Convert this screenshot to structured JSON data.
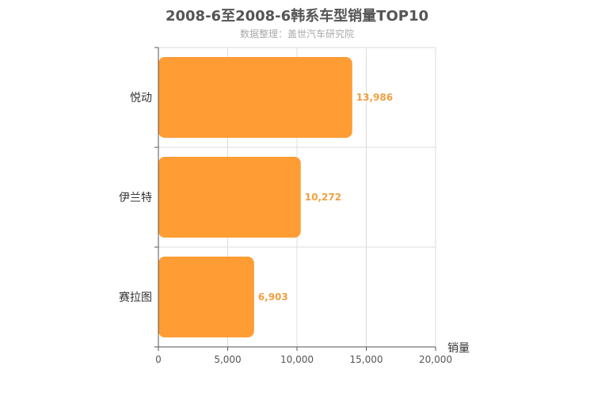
{
  "chart_data": {
    "type": "bar",
    "orientation": "horizontal",
    "title": "2008-6至2008-6韩系车型销量TOP10",
    "subtitle": "数据整理：盖世汽车研究院",
    "categories": [
      "悦动",
      "伊兰特",
      "赛拉图"
    ],
    "values": [
      13986,
      10272,
      6903
    ],
    "value_labels": [
      "13,986",
      "10,272",
      "6,903"
    ],
    "xlabel": "销量",
    "xlim": [
      0,
      20000
    ],
    "xticks": [
      0,
      5000,
      10000,
      15000,
      20000
    ],
    "xtick_labels": [
      "0",
      "5,000",
      "10,000",
      "15,000",
      "20,000"
    ],
    "grid": true,
    "colors": {
      "bar": "#ff9c33",
      "value_label": "#f0a040",
      "grid": "#dddddd",
      "axis": "#555555"
    }
  }
}
